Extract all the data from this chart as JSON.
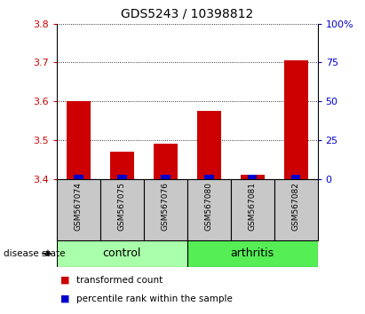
{
  "title": "GDS5243 / 10398812",
  "samples": [
    "GSM567074",
    "GSM567075",
    "GSM567076",
    "GSM567080",
    "GSM567081",
    "GSM567082"
  ],
  "transformed_counts": [
    3.6,
    3.47,
    3.49,
    3.575,
    3.41,
    3.705
  ],
  "percentile_ranks_pct": [
    2.5,
    2.5,
    2.5,
    2.5,
    2.5,
    2.5
  ],
  "ylim_left": [
    3.4,
    3.8
  ],
  "ylim_right": [
    0,
    100
  ],
  "yticks_left": [
    3.4,
    3.5,
    3.6,
    3.7,
    3.8
  ],
  "yticks_right": [
    0,
    25,
    50,
    75,
    100
  ],
  "base_value": 3.4,
  "red_color": "#cc0000",
  "blue_color": "#0000cc",
  "control_color": "#aaffaa",
  "arthritis_color": "#55ee55",
  "label_bg_color": "#c8c8c8",
  "legend_red": "transformed count",
  "legend_blue": "percentile rank within the sample",
  "group_label_text": "disease state",
  "control_count": 3,
  "arthritis_count": 3,
  "title_fontsize": 10,
  "tick_fontsize": 8,
  "sample_fontsize": 6.5,
  "group_fontsize": 9,
  "legend_fontsize": 7.5
}
